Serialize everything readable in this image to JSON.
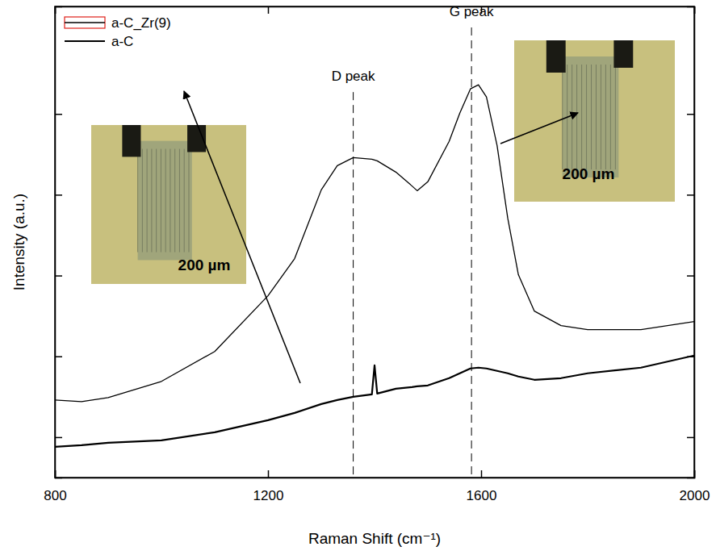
{
  "chart_data": {
    "type": "line",
    "x_label": "Raman Shift (cm⁻¹)",
    "y_label": "Intensity (a.u.)",
    "x": [
      800,
      850,
      900,
      1000,
      1100,
      1200,
      1250,
      1300,
      1330,
      1360,
      1395,
      1400,
      1405,
      1440,
      1470,
      1480,
      1500,
      1540,
      1560,
      1580,
      1595,
      1610,
      1630,
      1650,
      1670,
      1700,
      1750,
      1800,
      1900,
      2000
    ],
    "series": [
      {
        "name": "a-C_Zr(9)",
        "color": "#000000",
        "line_style": "solid",
        "values": [
          14.6,
          14.4,
          14.9,
          16.9,
          20.6,
          27.5,
          32.1,
          40.6,
          43.6,
          44.6,
          44.4,
          44.3,
          44.2,
          42.8,
          41.1,
          40.5,
          41.6,
          46.6,
          50.1,
          53.1,
          53.6,
          52.1,
          46.1,
          37.1,
          30.1,
          25.6,
          23.8,
          23.3,
          23.3,
          24.3
        ]
      },
      {
        "name": "a-C",
        "color": "#000000",
        "line_style": "solid",
        "values": [
          8.8,
          9.0,
          9.3,
          9.6,
          10.6,
          12.1,
          13.0,
          14.1,
          14.6,
          15.0,
          15.3,
          18.9,
          15.4,
          16.0,
          16.2,
          16.3,
          16.4,
          17.3,
          17.9,
          18.5,
          18.6,
          18.5,
          18.2,
          17.9,
          17.5,
          17.1,
          17.3,
          17.9,
          18.6,
          20.1
        ]
      }
    ],
    "xlim": [
      800,
      2000
    ],
    "xticks": [
      800,
      1200,
      1600,
      2000
    ],
    "ylim": [
      5,
      63.3
    ],
    "yticks": [
      10,
      20,
      30,
      40,
      50
    ],
    "tick_labels": "x",
    "legend": "top-left",
    "annotations": [
      {
        "text": "D peak",
        "x": 1360,
        "y": 54.1
      },
      {
        "text": "G peak",
        "x": 1582,
        "y": 62.1
      }
    ],
    "insets": [
      {
        "series": "a-C",
        "label": "200 µm"
      },
      {
        "series": "a-C_Zr(9)",
        "label": "200 µm"
      }
    ]
  }
}
